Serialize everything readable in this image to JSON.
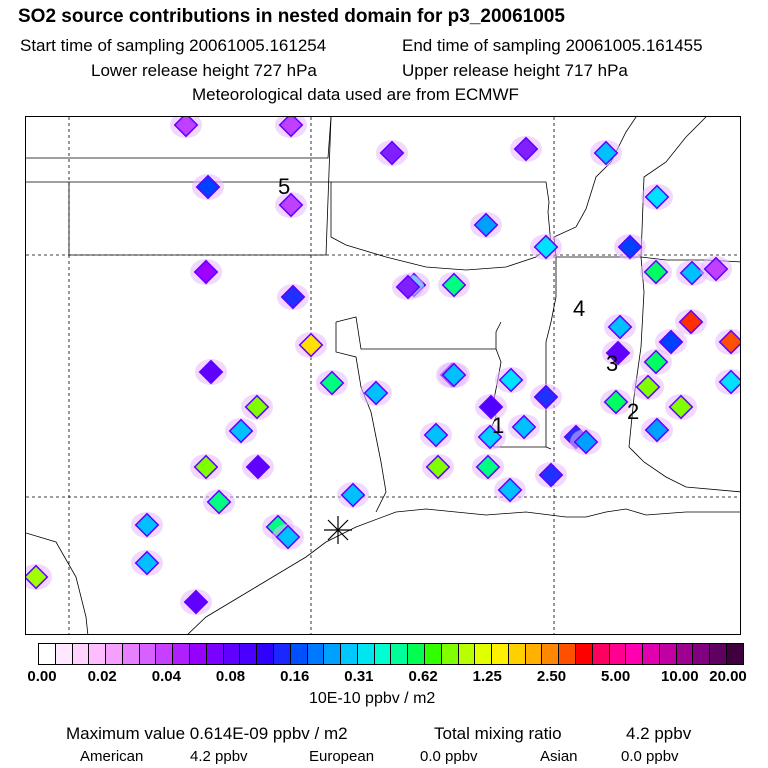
{
  "header": {
    "title": "SO2 source contributions in nested domain for p3_20061005",
    "start_label": "Start time of sampling 20061005.161254",
    "end_label": "End time of sampling 20061005.161455",
    "lower_label": "Lower release height  727 hPa",
    "upper_label": "Upper release height  717 hPa",
    "met_label": "Meteorological data used are from ECMWF"
  },
  "chart_data": {
    "type": "heatmap",
    "title": "SO2 source contributions in nested domain for p3_20061005",
    "map_labels": [
      "1",
      "2",
      "3",
      "4",
      "5"
    ],
    "colorbar": {
      "tick_labels": [
        "0.00",
        "0.02",
        "0.04",
        "0.08",
        "0.16",
        "0.31",
        "0.62",
        "1.25",
        "2.50",
        "5.00",
        "10.00",
        "20.00"
      ],
      "colors": [
        "#ffffff",
        "#ffe8ff",
        "#ffd2ff",
        "#ffbcff",
        "#f5a0ff",
        "#e680ff",
        "#d860ff",
        "#c840ff",
        "#b020ff",
        "#9600ff",
        "#7a00ff",
        "#6000ff",
        "#4a00ff",
        "#3000ff",
        "#1a28ff",
        "#0050ff",
        "#0078ff",
        "#00a0ff",
        "#00c8ff",
        "#00e6f0",
        "#00ffd0",
        "#00ff98",
        "#00ff50",
        "#30ff00",
        "#80ff00",
        "#b8ff00",
        "#e0ff00",
        "#fff000",
        "#ffd000",
        "#ffb000",
        "#ff8800",
        "#ff5000",
        "#ff0000",
        "#ff0060",
        "#ff0090",
        "#ff00b0",
        "#e000b0",
        "#c000a0",
        "#a00090",
        "#800080",
        "#600060",
        "#400040"
      ],
      "units": "10E-10 ppbv / m2"
    },
    "summary": {
      "max_label": "Maximum value  0.614E-09 ppbv / m2",
      "total_label": "Total mixing ratio",
      "total_value": "4.2 ppbv",
      "american_label": "American",
      "american_value": "4.2 ppbv",
      "european_label": "European",
      "european_value": "0.0 ppbv",
      "asian_label": "Asian",
      "asian_value": "0.0 ppbv"
    }
  }
}
